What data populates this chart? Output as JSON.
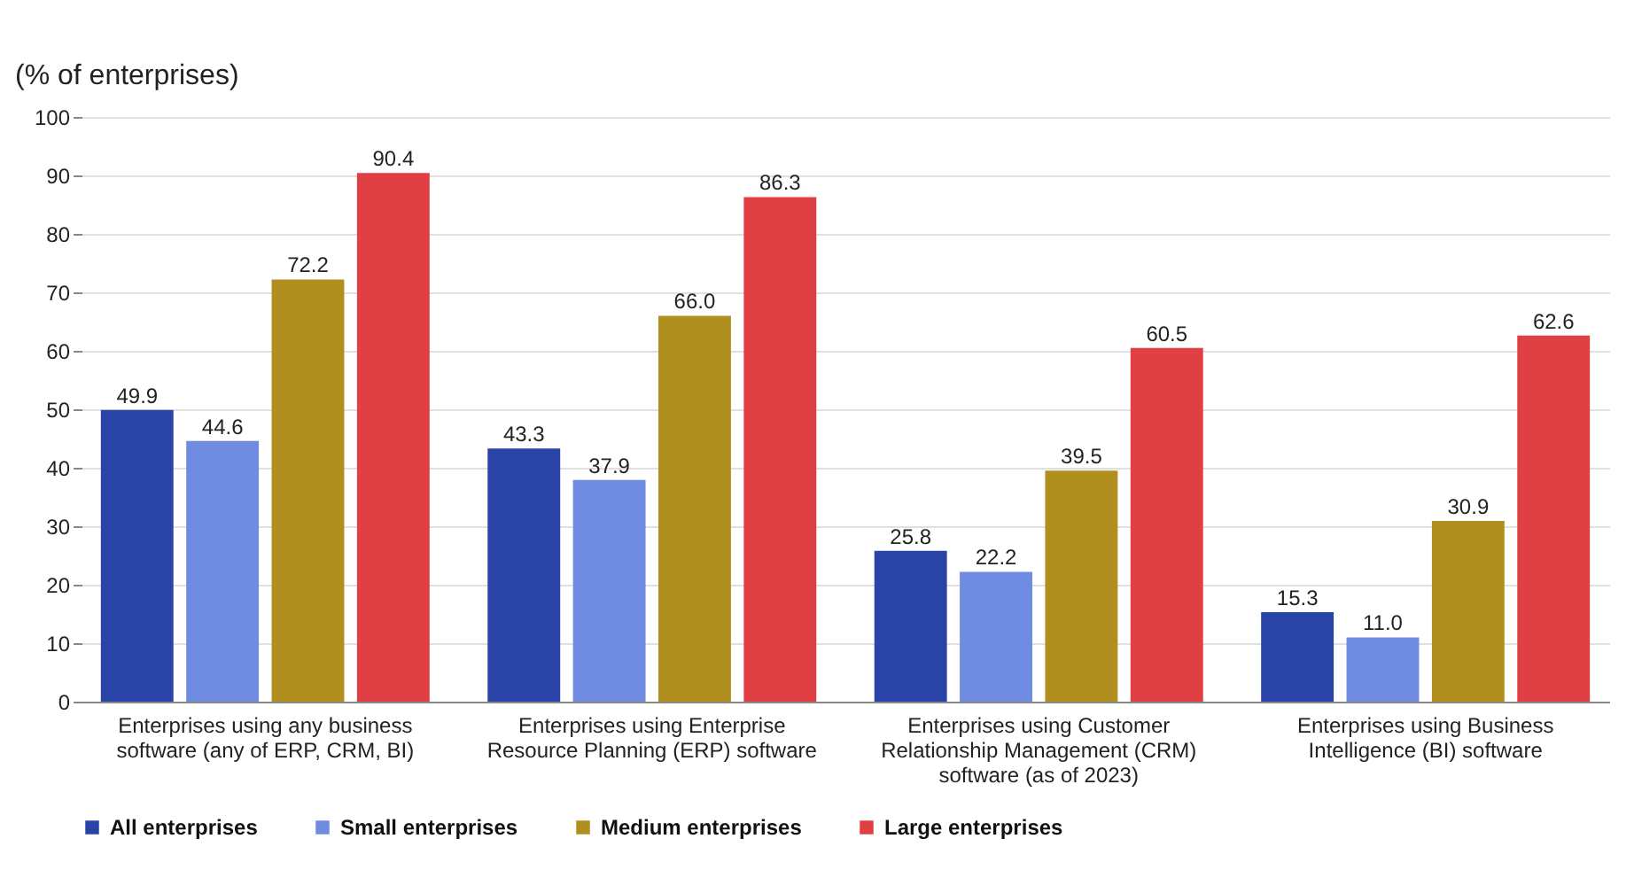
{
  "chart_data": {
    "type": "bar",
    "ylabel": "(% of enterprises)",
    "categories": [
      "Enterprises using any business software (any of ERP, CRM, BI)",
      "Enterprises using Enterprise Resource Planning (ERP) software",
      "Enterprises using Customer Relationship Management (CRM) software (as of 2023)",
      "Enterprises using Business Intelligence (BI) software"
    ],
    "series": [
      {
        "name": "All enterprises",
        "color": "#2a43a6",
        "values": [
          49.9,
          43.3,
          25.8,
          15.3
        ],
        "value_labels": [
          "49.9",
          "43.3",
          "25.8",
          "15.3"
        ]
      },
      {
        "name": "Small enterprises",
        "color": "#6f8be2",
        "values": [
          44.6,
          37.9,
          22.2,
          11.0
        ],
        "value_labels": [
          "44.6",
          "37.9",
          "22.2",
          "11.0"
        ]
      },
      {
        "name": "Medium enterprises",
        "color": "#b08f1e",
        "values": [
          72.2,
          66.0,
          39.5,
          30.9
        ],
        "value_labels": [
          "72.2",
          "66.0",
          "39.5",
          "30.9"
        ]
      },
      {
        "name": "Large enterprises",
        "color": "#e04044",
        "values": [
          90.4,
          86.3,
          60.5,
          62.6
        ],
        "value_labels": [
          "90.4",
          "86.3",
          "60.5",
          "62.6"
        ]
      }
    ],
    "ylim": [
      0,
      100
    ],
    "yticks": [
      0,
      10,
      20,
      30,
      40,
      50,
      60,
      70,
      80,
      90,
      100
    ],
    "grid": "y",
    "legend": "bottom"
  }
}
